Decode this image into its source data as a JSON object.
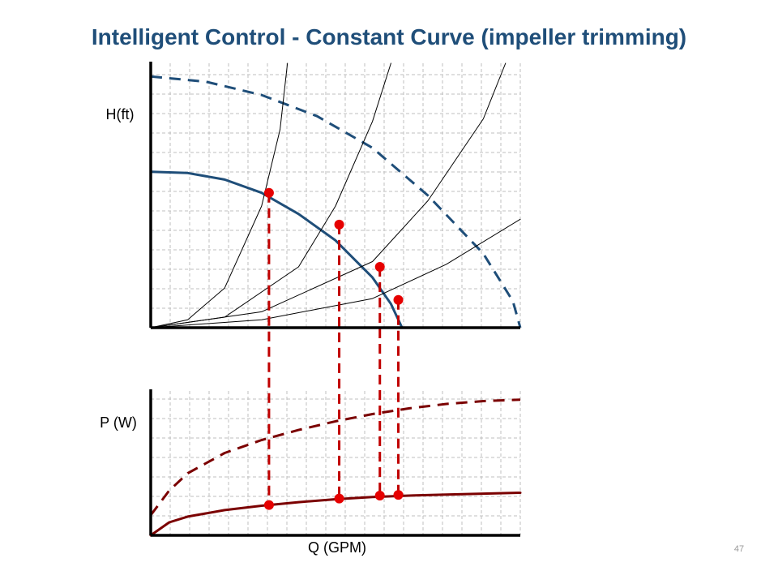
{
  "title": "Intelligent Control - Constant Curve (impeller trimming)",
  "page_number": "47",
  "colors": {
    "head_curve": "#1f4e79",
    "power_curve": "#7b0000",
    "operating_point": "#e60000",
    "drop_line": "#c00000",
    "system_curve": "#000000",
    "grid": "#bfbfbf"
  },
  "chart_data": [
    {
      "type": "line",
      "panel": "head",
      "ylabel": "H(ft)",
      "xlabel": "",
      "x_range": [
        0,
        10
      ],
      "y_range": [
        0,
        10
      ],
      "grid": true,
      "series": [
        {
          "style": "solid",
          "x": [
            0,
            1,
            2,
            3,
            4,
            5,
            6,
            6.5,
            6.8
          ],
          "y": [
            5.9,
            5.85,
            5.6,
            5.1,
            4.3,
            3.3,
            1.9,
            0.9,
            0
          ]
        },
        {
          "style": "dashed",
          "x": [
            0,
            1.5,
            3,
            4.5,
            6,
            7.5,
            9,
            9.8,
            10
          ],
          "y": [
            9.5,
            9.3,
            8.8,
            8.0,
            6.8,
            5.0,
            2.8,
            1.0,
            0
          ]
        },
        {
          "style": "thin",
          "x": [
            0,
            1,
            2,
            3,
            3.5,
            3.7
          ],
          "y": [
            0,
            0.3,
            1.5,
            4.6,
            7.5,
            10
          ]
        },
        {
          "style": "thin",
          "x": [
            0,
            2,
            4,
            5,
            6,
            6.5
          ],
          "y": [
            0,
            0.4,
            2.3,
            4.6,
            7.8,
            10
          ]
        },
        {
          "style": "thin",
          "x": [
            0,
            3,
            6,
            7.5,
            9,
            9.6
          ],
          "y": [
            0,
            0.6,
            2.5,
            4.8,
            7.9,
            10
          ]
        },
        {
          "style": "thin",
          "x": [
            0,
            3,
            6,
            8,
            10
          ],
          "y": [
            0,
            0.3,
            1.1,
            2.4,
            4.1
          ]
        }
      ],
      "points": [
        {
          "x": 3.2,
          "y": 5.1
        },
        {
          "x": 5.1,
          "y": 3.9
        },
        {
          "x": 6.2,
          "y": 2.3
        },
        {
          "x": 6.7,
          "y": 1.05
        }
      ]
    },
    {
      "type": "line",
      "panel": "power",
      "ylabel": "P (W)",
      "xlabel": "Q (GPM)",
      "x_range": [
        0,
        10
      ],
      "y_range": [
        0,
        10
      ],
      "grid": true,
      "series": [
        {
          "style": "solid",
          "x": [
            0,
            0.5,
            1,
            2,
            3,
            4,
            5,
            6,
            7,
            8,
            10
          ],
          "y": [
            0,
            0.9,
            1.3,
            1.75,
            2.05,
            2.3,
            2.5,
            2.65,
            2.75,
            2.82,
            2.95
          ]
        },
        {
          "style": "dashed",
          "x": [
            0,
            0.5,
            1,
            2,
            3,
            4,
            5,
            6,
            7,
            8,
            9,
            10
          ],
          "y": [
            1.4,
            3.1,
            4.3,
            5.7,
            6.6,
            7.3,
            7.9,
            8.4,
            8.8,
            9.1,
            9.3,
            9.4
          ]
        }
      ],
      "points": [
        {
          "x": 3.2,
          "y": 2.1
        },
        {
          "x": 5.1,
          "y": 2.55
        },
        {
          "x": 6.2,
          "y": 2.75
        },
        {
          "x": 6.7,
          "y": 2.8
        }
      ]
    }
  ]
}
